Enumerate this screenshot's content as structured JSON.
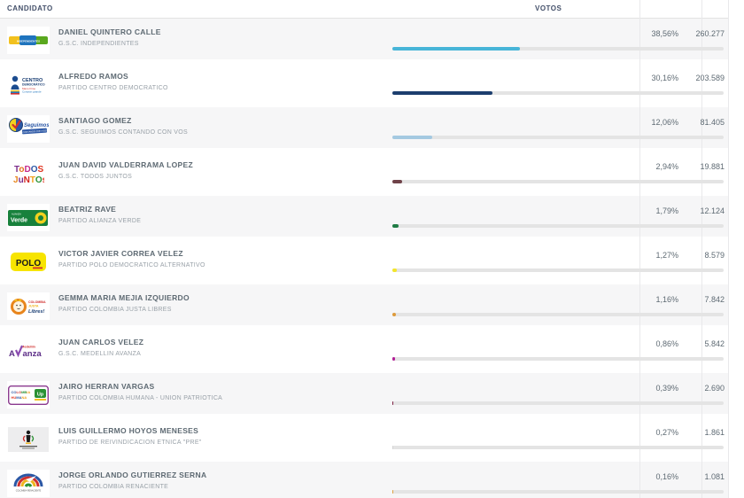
{
  "header": {
    "candidato": "CANDIDATO",
    "votos": "VOTOS"
  },
  "candidates": [
    {
      "name": "DANIEL QUINTERO CALLE",
      "party": "G.S.C. INDEPENDIENTES",
      "percent": "38,56%",
      "percent_value": 38.56,
      "votes": "260.277",
      "bar_color": "#47b5d8",
      "logo": {
        "id": "independientes",
        "text": [
          "INDEPENDIENTES"
        ]
      }
    },
    {
      "name": "ALFREDO RAMOS",
      "party": "PARTIDO CENTRO DEMOCRATICO",
      "percent": "30,16%",
      "percent_value": 30.16,
      "votes": "203.589",
      "bar_color": "#1c3e6e",
      "logo": {
        "id": "centro-democratico",
        "text": [
          "CENTRO",
          "DEMOCRÁTICO",
          "Mano firme",
          "Corazón grande"
        ]
      }
    },
    {
      "name": "SANTIAGO GOMEZ",
      "party": "G.S.C. SEGUIMOS CONTANDO CON VOS",
      "percent": "12,06%",
      "percent_value": 12.06,
      "votes": "81.405",
      "bar_color": "#a4c9e1",
      "logo": {
        "id": "seguimos",
        "text": [
          "Seguimos",
          "CONTANDO CON VOS"
        ]
      }
    },
    {
      "name": "JUAN DAVID VALDERRAMA LOPEZ",
      "party": "G.S.C. TODOS JUNTOS",
      "percent": "2,94%",
      "percent_value": 2.94,
      "votes": "19.881",
      "bar_color": "#6f4249",
      "logo": {
        "id": "todos-juntos",
        "text": [
          "ToDOS",
          "JuNTOs"
        ]
      }
    },
    {
      "name": "BEATRIZ RAVE",
      "party": "PARTIDO ALIANZA VERDE",
      "percent": "1,79%",
      "percent_value": 1.79,
      "votes": "12.124",
      "bar_color": "#1f7c45",
      "logo": {
        "id": "alianza-verde",
        "text": [
          "ALIANZA",
          "Verde"
        ]
      }
    },
    {
      "name": "VICTOR JAVIER CORREA VELEZ",
      "party": "PARTIDO POLO DEMOCRATICO ALTERNATIVO",
      "percent": "1,27%",
      "percent_value": 1.27,
      "votes": "8.579",
      "bar_color": "#f3e52c",
      "logo": {
        "id": "polo",
        "text": [
          "POLO"
        ]
      }
    },
    {
      "name": "GEMMA MARIA MEJIA IZQUIERDO",
      "party": "PARTIDO COLOMBIA JUSTA LIBRES",
      "percent": "1,16%",
      "percent_value": 1.16,
      "votes": "7.842",
      "bar_color": "#de9b3b",
      "logo": {
        "id": "justa-libres",
        "text": [
          "COLOMBIA",
          "JUSTA",
          "Libres!"
        ]
      }
    },
    {
      "name": "JUAN CARLOS VELEZ",
      "party": "G.S.C. MEDELLIN AVANZA",
      "percent": "0,86%",
      "percent_value": 0.86,
      "votes": "5.842",
      "bar_color": "#b11e96",
      "logo": {
        "id": "medellin-avanza",
        "text": [
          "Medellín",
          "A",
          "anza"
        ]
      }
    },
    {
      "name": "JAIRO HERRAN VARGAS",
      "party": "PARTIDO COLOMBIA HUMANA - UNION PATRIOTICA",
      "percent": "0,39%",
      "percent_value": 0.39,
      "votes": "2.690",
      "bar_color": "#7d2143",
      "logo": {
        "id": "colombia-humana-up",
        "text": [
          "COLOMBIA",
          "HUMANA",
          "Up"
        ]
      }
    },
    {
      "name": "LUIS GUILLERMO HOYOS MENESES",
      "party": "PARTIDO DE REIVINDICACION ETNICA \"PRE\"",
      "percent": "0,27%",
      "percent_value": 0.27,
      "votes": "1.861",
      "bar_color": "#d2d2d2",
      "logo": {
        "id": "pre",
        "text": []
      }
    },
    {
      "name": "JORGE ORLANDO GUTIERREZ SERNA",
      "party": "PARTIDO COLOMBIA RENACIENTE",
      "percent": "0,16%",
      "percent_value": 0.16,
      "votes": "1.081",
      "bar_color": "#dfa23f",
      "logo": {
        "id": "colombia-renaciente",
        "text": [
          "COLOMBIA",
          "RENACIENTE"
        ]
      }
    }
  ]
}
